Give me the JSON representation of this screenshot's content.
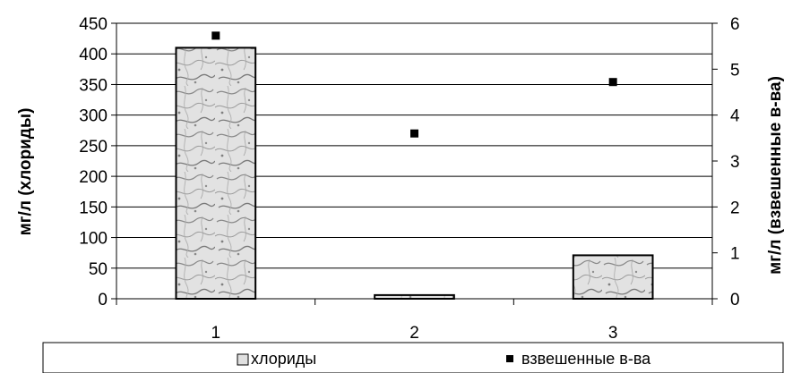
{
  "chart_data": {
    "type": "bar",
    "categories": [
      "1",
      "2",
      "3"
    ],
    "series": [
      {
        "name": "хлориды",
        "kind": "bar",
        "axis": "left",
        "values": [
          410,
          6,
          71
        ]
      },
      {
        "name": "взвешенные в-ва",
        "kind": "scatter",
        "axis": "right",
        "values": [
          5.73,
          3.6,
          4.72
        ]
      }
    ],
    "title": "",
    "xlabel": "",
    "ylabel": "мг/л (хлориды)",
    "y2label": "мг/л (взвешенные в-ва)",
    "ylim": [
      0,
      450
    ],
    "y2lim": [
      0,
      6
    ],
    "yticks": [
      "0",
      "50",
      "100",
      "150",
      "200",
      "250",
      "300",
      "350",
      "400",
      "450"
    ],
    "y2ticks": [
      "0",
      "1",
      "2",
      "3",
      "4",
      "5",
      "6"
    ],
    "grid": true,
    "legend_position": "bottom",
    "legend": [
      "хлориды",
      "взвешенные в-ва"
    ],
    "colors": {
      "bar_fill": "#dcdcdc",
      "bar_texture": "#6e6e6e",
      "marker": "#000000",
      "grid": "#000000"
    }
  }
}
